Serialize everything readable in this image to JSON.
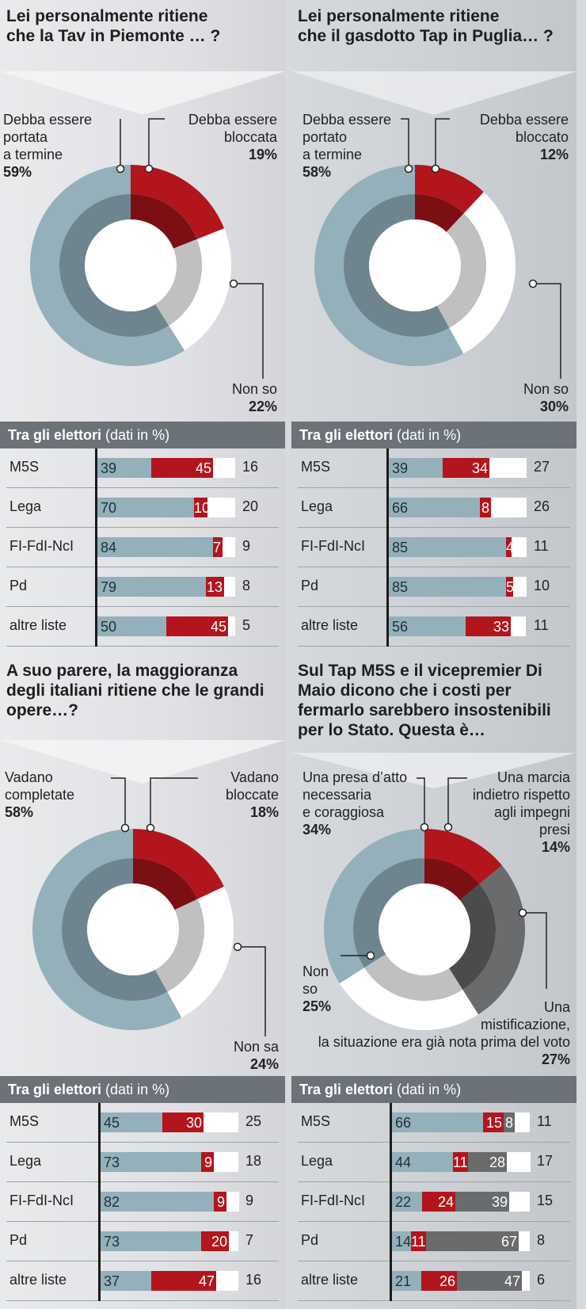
{
  "panels": [
    {
      "question": "Lei personalmente ritiene\nche la Tav in Piemonte … ?",
      "labels": [
        {
          "text": "Debba essere\nportata\na termine",
          "pct": "59%"
        },
        {
          "text": "Debba essere\nbloccata",
          "pct": "19%"
        },
        {
          "text": "Non so",
          "pct": "22%"
        }
      ],
      "table_header": {
        "title": "Tra gli elettori",
        "sub": "(dati in %)"
      },
      "rows": [
        {
          "party": "M5S",
          "vals": [
            "39",
            "45",
            "16"
          ]
        },
        {
          "party": "Lega",
          "vals": [
            "70",
            "10",
            "20"
          ]
        },
        {
          "party": "FI-FdI-NcI",
          "vals": [
            "84",
            "7",
            "9"
          ]
        },
        {
          "party": "Pd",
          "vals": [
            "79",
            "13",
            "8"
          ]
        },
        {
          "party": "altre liste",
          "vals": [
            "50",
            "45",
            "5"
          ]
        }
      ]
    },
    {
      "question": "Lei personalmente ritiene\nche il gasdotto Tap in Puglia… ?",
      "labels": [
        {
          "text": "Debba essere\nportato\na termine",
          "pct": "58%"
        },
        {
          "text": "Debba essere\nbloccato",
          "pct": "12%"
        },
        {
          "text": "Non so",
          "pct": "30%"
        }
      ],
      "table_header": {
        "title": "Tra gli elettori",
        "sub": "(dati in %)"
      },
      "rows": [
        {
          "party": "M5S",
          "vals": [
            "39",
            "34",
            "27"
          ]
        },
        {
          "party": "Lega",
          "vals": [
            "66",
            "8",
            "26"
          ]
        },
        {
          "party": "FI-FdI-NcI",
          "vals": [
            "85",
            "4",
            "11"
          ]
        },
        {
          "party": "Pd",
          "vals": [
            "85",
            "5",
            "10"
          ]
        },
        {
          "party": "altre liste",
          "vals": [
            "56",
            "33",
            "11"
          ]
        }
      ]
    },
    {
      "question": "A suo parere, la maggioranza\ndegli italiani ritiene che le grandi\nopere…?",
      "labels": [
        {
          "text": "Vadano\ncompletate",
          "pct": "58%"
        },
        {
          "text": "Vadano\nbloccate",
          "pct": "18%"
        },
        {
          "text": "Non sa",
          "pct": "24%"
        }
      ],
      "table_header": {
        "title": "Tra gli elettori",
        "sub": "(dati in %)"
      },
      "rows": [
        {
          "party": "M5S",
          "vals": [
            "45",
            "30",
            "25"
          ]
        },
        {
          "party": "Lega",
          "vals": [
            "73",
            "9",
            "18"
          ]
        },
        {
          "party": "FI-FdI-NcI",
          "vals": [
            "82",
            "9",
            "9"
          ]
        },
        {
          "party": "Pd",
          "vals": [
            "73",
            "20",
            "7"
          ]
        },
        {
          "party": "altre liste",
          "vals": [
            "37",
            "47",
            "16"
          ]
        }
      ]
    },
    {
      "question": "Sul Tap M5S e il vicepremier Di\nMaio dicono che i costi per\nfermarlo sarebbero insostenibili\nper lo Stato. Questa è…",
      "labels": [
        {
          "text": "Una presa d’atto\nnecessaria\ne coraggiosa",
          "pct": "34%"
        },
        {
          "text": "Una marcia\nindietro rispetto\nagli impegni\npresi",
          "pct": "14%"
        },
        {
          "text": "Una\nmistificazione,\nla situazione era già nota prima del voto",
          "pct": "27%"
        },
        {
          "text": "Non\nso",
          "pct": "25%"
        }
      ],
      "table_header": {
        "title": "Tra gli elettori",
        "sub": "(dati in %)"
      },
      "rows": [
        {
          "party": "M5S",
          "vals": [
            "66",
            "15",
            "8",
            "11"
          ]
        },
        {
          "party": "Lega",
          "vals": [
            "44",
            "11",
            "28",
            "17"
          ]
        },
        {
          "party": "FI-FdI-NcI",
          "vals": [
            "22",
            "24",
            "39",
            "15"
          ]
        },
        {
          "party": "Pd",
          "vals": [
            "14",
            "11",
            "67",
            "8"
          ]
        },
        {
          "party": "altre liste",
          "vals": [
            "21",
            "26",
            "47",
            "6"
          ]
        }
      ]
    }
  ],
  "colors": {
    "complete": "#93b0bb",
    "complete_inner": "#6e8590",
    "block": "#b3151d",
    "block_inner": "#7c0f14",
    "unsure": "#ffffff",
    "unsure_inner": "#c0c0c0",
    "mist": "#6a6b6d",
    "mist_inner": "#4a4b4d"
  },
  "chart_data": [
    {
      "type": "pie",
      "title": "Lei personalmente ritiene che la Tav in Piemonte … ?",
      "categories": [
        "Debba essere portata a termine",
        "Debba essere bloccata",
        "Non so"
      ],
      "values": [
        59,
        19,
        22
      ],
      "breakdown": {
        "type": "bar",
        "title": "Tra gli elettori (dati in %)",
        "categories": [
          "M5S",
          "Lega",
          "FI-FdI-NcI",
          "Pd",
          "altre liste"
        ],
        "series": [
          {
            "name": "Debba essere portata a termine",
            "values": [
              39,
              70,
              84,
              79,
              50
            ]
          },
          {
            "name": "Debba essere bloccata",
            "values": [
              45,
              10,
              7,
              13,
              45
            ]
          },
          {
            "name": "Non so",
            "values": [
              16,
              20,
              9,
              8,
              5
            ]
          }
        ]
      }
    },
    {
      "type": "pie",
      "title": "Lei personalmente ritiene che il gasdotto Tap in Puglia… ?",
      "categories": [
        "Debba essere portato a termine",
        "Debba essere bloccato",
        "Non so"
      ],
      "values": [
        58,
        12,
        30
      ],
      "breakdown": {
        "type": "bar",
        "title": "Tra gli elettori (dati in %)",
        "categories": [
          "M5S",
          "Lega",
          "FI-FdI-NcI",
          "Pd",
          "altre liste"
        ],
        "series": [
          {
            "name": "Debba essere portato a termine",
            "values": [
              39,
              66,
              85,
              85,
              56
            ]
          },
          {
            "name": "Debba essere bloccato",
            "values": [
              34,
              8,
              4,
              5,
              33
            ]
          },
          {
            "name": "Non so",
            "values": [
              27,
              26,
              11,
              10,
              11
            ]
          }
        ]
      }
    },
    {
      "type": "pie",
      "title": "A suo parere, la maggioranza degli italiani ritiene che le grandi opere…?",
      "categories": [
        "Vadano completate",
        "Vadano bloccate",
        "Non sa"
      ],
      "values": [
        58,
        18,
        24
      ],
      "breakdown": {
        "type": "bar",
        "title": "Tra gli elettori (dati in %)",
        "categories": [
          "M5S",
          "Lega",
          "FI-FdI-NcI",
          "Pd",
          "altre liste"
        ],
        "series": [
          {
            "name": "Vadano completate",
            "values": [
              45,
              73,
              82,
              73,
              37
            ]
          },
          {
            "name": "Vadano bloccate",
            "values": [
              30,
              9,
              9,
              20,
              47
            ]
          },
          {
            "name": "Non sa",
            "values": [
              25,
              18,
              9,
              7,
              16
            ]
          }
        ]
      }
    },
    {
      "type": "pie",
      "title": "Sul Tap M5S e il vicepremier Di Maio dicono che i costi per fermarlo sarebbero insostenibili per lo Stato. Questa è…",
      "categories": [
        "Una presa d’atto necessaria e coraggiosa",
        "Una marcia indietro rispetto agli impegni presi",
        "Una mistificazione, la situazione era già nota prima del voto",
        "Non so"
      ],
      "values": [
        34,
        14,
        27,
        25
      ],
      "breakdown": {
        "type": "bar",
        "title": "Tra gli elettori (dati in %)",
        "categories": [
          "M5S",
          "Lega",
          "FI-FdI-NcI",
          "Pd",
          "altre liste"
        ],
        "series": [
          {
            "name": "Una presa d’atto necessaria e coraggiosa",
            "values": [
              66,
              44,
              22,
              14,
              21
            ]
          },
          {
            "name": "Una marcia indietro rispetto agli impegni presi",
            "values": [
              15,
              11,
              24,
              11,
              26
            ]
          },
          {
            "name": "Una mistificazione, la situazione era già nota prima del voto",
            "values": [
              8,
              28,
              39,
              67,
              47
            ]
          },
          {
            "name": "Non so",
            "values": [
              11,
              17,
              15,
              8,
              6
            ]
          }
        ]
      }
    }
  ]
}
